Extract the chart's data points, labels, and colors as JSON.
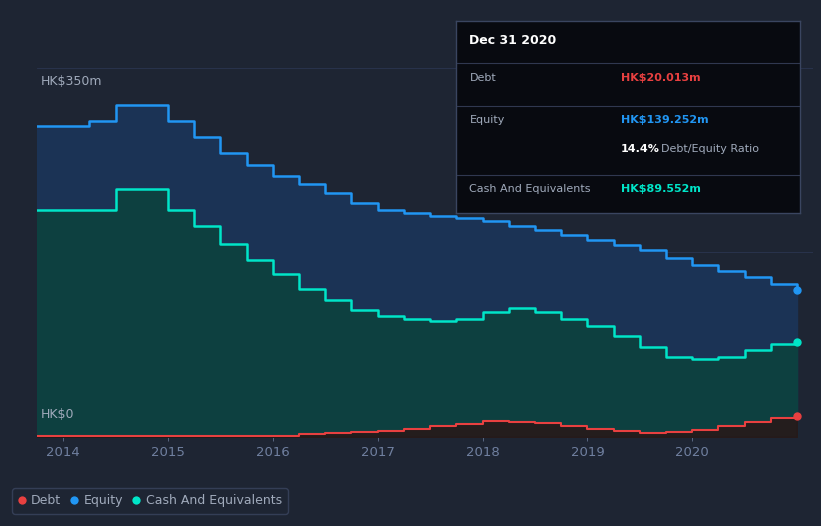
{
  "background_color": "#1e2533",
  "plot_bg_color": "#1e2533",
  "ylabel_top": "HK$350m",
  "ylabel_bottom": "HK$0",
  "tooltip": {
    "title": "Dec 31 2020",
    "debt_label": "Debt",
    "debt_value": "HK$20.013m",
    "equity_label": "Equity",
    "equity_value": "HK$139.252m",
    "ratio_value": "14.4% Debt/Equity Ratio",
    "cash_label": "Cash And Equivalents",
    "cash_value": "HK$89.552m"
  },
  "years": [
    2013.75,
    2014.0,
    2014.25,
    2014.5,
    2014.75,
    2015.0,
    2015.25,
    2015.5,
    2015.75,
    2016.0,
    2016.25,
    2016.5,
    2016.75,
    2017.0,
    2017.25,
    2017.5,
    2017.75,
    2018.0,
    2018.25,
    2018.5,
    2018.75,
    2019.0,
    2019.25,
    2019.5,
    2019.75,
    2020.0,
    2020.25,
    2020.5,
    2020.75,
    2021.0
  ],
  "equity": [
    295,
    295,
    300,
    315,
    315,
    300,
    285,
    270,
    258,
    248,
    240,
    232,
    222,
    215,
    213,
    210,
    208,
    205,
    200,
    196,
    192,
    187,
    182,
    177,
    170,
    163,
    157,
    152,
    145,
    139
  ],
  "cash": [
    215,
    215,
    215,
    235,
    235,
    215,
    200,
    183,
    168,
    155,
    140,
    130,
    120,
    115,
    112,
    110,
    112,
    118,
    122,
    118,
    112,
    105,
    96,
    85,
    76,
    74,
    76,
    82,
    88,
    90
  ],
  "debt": [
    1,
    1,
    1,
    1,
    1,
    1,
    1,
    1,
    1,
    1,
    2,
    3,
    4,
    5,
    7,
    10,
    12,
    15,
    14,
    13,
    10,
    7,
    5,
    3,
    4,
    6,
    10,
    14,
    18,
    20
  ],
  "equity_color": "#2196f3",
  "equity_fill": "#1b3355",
  "cash_color": "#00e5c8",
  "cash_fill": "#0d4040",
  "debt_color": "#e84040",
  "debt_fill": "#2a1515",
  "grid_color": "#2a3550",
  "text_color": "#a0aabb",
  "tick_color": "#7080a0",
  "legend_bg": "#1e2533",
  "legend_border": "#3a4560",
  "tooltip_bg": "#080a10",
  "tooltip_border": "#3a4560",
  "x_ticks": [
    2014,
    2015,
    2016,
    2017,
    2018,
    2019,
    2020
  ],
  "xlim": [
    2013.75,
    2021.15
  ],
  "ylim": [
    0,
    360
  ]
}
